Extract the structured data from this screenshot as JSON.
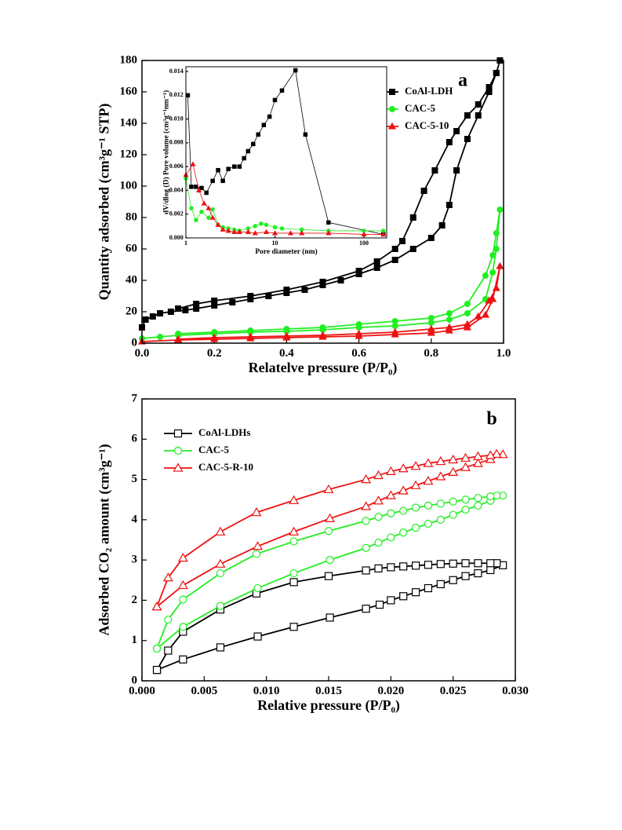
{
  "chart_data": [
    {
      "type": "line",
      "panel_label": "a",
      "xlabel": "Relatelve pressure (P/P₀)",
      "ylabel": "Quantity adsorbed (cm³g⁻¹ STP)",
      "xlim": [
        0,
        1
      ],
      "ylim": [
        0,
        180
      ],
      "xticks": [
        {
          "value": 0,
          "label": "0.0"
        },
        0.2,
        0.4,
        0.6,
        0.8,
        {
          "value": 1,
          "label": "1.0"
        }
      ],
      "yticks": [
        0,
        20,
        40,
        60,
        80,
        100,
        120,
        140,
        160,
        180
      ],
      "legend": "upper right",
      "filled": true,
      "series": [
        {
          "name": "CoAl-LDH",
          "color": "#000000",
          "marker": "square",
          "x": [
            0.0,
            0.01,
            0.03,
            0.05,
            0.08,
            0.12,
            0.15,
            0.2,
            0.25,
            0.3,
            0.35,
            0.4,
            0.45,
            0.5,
            0.55,
            0.6,
            0.65,
            0.7,
            0.75,
            0.8,
            0.83,
            0.85,
            0.87,
            0.9,
            0.93,
            0.96,
            0.98,
            0.99,
            0.98,
            0.96,
            0.93,
            0.9,
            0.87,
            0.85,
            0.81,
            0.78,
            0.75,
            0.72,
            0.7,
            0.65,
            0.6,
            0.5,
            0.4,
            0.3,
            0.2,
            0.15,
            0.1
          ],
          "values": [
            10,
            15,
            17,
            19,
            20,
            21,
            22,
            24,
            26,
            28,
            30,
            32,
            34,
            37,
            40,
            44,
            48,
            53,
            60,
            67,
            75,
            88,
            110,
            130,
            145,
            160,
            172,
            180,
            172,
            163,
            152,
            145,
            135,
            128,
            110,
            97,
            80,
            65,
            60,
            52,
            46,
            39,
            34,
            30,
            27,
            25,
            22
          ]
        },
        {
          "name": "CAC-5",
          "color": "#22ee22",
          "marker": "circle",
          "x": [
            0.0,
            0.05,
            0.1,
            0.2,
            0.3,
            0.4,
            0.5,
            0.6,
            0.7,
            0.8,
            0.85,
            0.9,
            0.95,
            0.97,
            0.98,
            0.99,
            0.98,
            0.97,
            0.95,
            0.9,
            0.85,
            0.8,
            0.7,
            0.6,
            0.5,
            0.4,
            0.3,
            0.2,
            0.1
          ],
          "values": [
            3,
            4,
            5,
            6,
            7,
            7.5,
            8.5,
            10,
            11,
            13,
            15,
            19,
            28,
            45,
            60,
            85,
            70,
            56,
            43,
            25,
            19,
            16,
            14,
            12,
            10,
            9,
            8,
            7,
            6
          ]
        },
        {
          "name": "CAC-5-10",
          "color": "#ee1111",
          "marker": "triangle",
          "x": [
            0.0,
            0.1,
            0.2,
            0.3,
            0.4,
            0.5,
            0.6,
            0.7,
            0.8,
            0.85,
            0.9,
            0.95,
            0.97,
            0.99,
            0.98,
            0.96,
            0.93,
            0.9,
            0.85,
            0.8,
            0.7,
            0.6,
            0.5,
            0.4,
            0.3,
            0.2,
            0.1
          ],
          "values": [
            1,
            2,
            2.5,
            3,
            3.5,
            4,
            4.5,
            5.5,
            6.5,
            8,
            10,
            18,
            28,
            49,
            35,
            27,
            17,
            12,
            10,
            9,
            7,
            6,
            5,
            4.5,
            4,
            3.5,
            2.5
          ]
        }
      ]
    },
    {
      "type": "line",
      "xlabel": "Pore diameter (nm)",
      "ylabel": "dV/dlog (D) Pore volume (cm³g⁻¹nm⁻¹)",
      "xlog": true,
      "xlim": [
        1,
        180
      ],
      "ylim": [
        0,
        0.0144
      ],
      "xticks": [
        1,
        10,
        100
      ],
      "yticks": [
        {
          "value": 0,
          "label": "0.000"
        },
        0.002,
        0.004,
        0.006,
        0.008,
        {
          "value": 0.01,
          "label": "0.010"
        },
        0.012,
        0.014
      ],
      "filled": true,
      "series": [
        {
          "color": "#000000",
          "marker": "square",
          "x": [
            1.05,
            1.15,
            1.3,
            1.5,
            1.7,
            2.0,
            2.3,
            2.6,
            3,
            3.5,
            4,
            4.5,
            5,
            5.7,
            6.5,
            7.5,
            8.7,
            10,
            12,
            17,
            22,
            40,
            165
          ],
          "values": [
            0.012,
            0.0043,
            0.0043,
            0.0042,
            0.0038,
            0.0048,
            0.0057,
            0.0048,
            0.0058,
            0.006,
            0.006,
            0.0067,
            0.0073,
            0.0079,
            0.0087,
            0.0095,
            0.0102,
            0.0116,
            0.0124,
            0.0141,
            0.0087,
            0.0013,
            0.0003
          ]
        },
        {
          "color": "#22ee22",
          "marker": "circle",
          "x": [
            1,
            1.15,
            1.3,
            1.5,
            1.8,
            2,
            2.3,
            2.6,
            3,
            3.5,
            4,
            5,
            6,
            7,
            8,
            10,
            12,
            20,
            40,
            100,
            165
          ],
          "values": [
            0.005,
            0.0025,
            0.0015,
            0.0022,
            0.0017,
            0.0024,
            0.0011,
            0.0009,
            0.0008,
            0.0007,
            0.0006,
            0.0008,
            0.001,
            0.0012,
            0.0011,
            0.0009,
            0.0008,
            0.0007,
            0.0006,
            0.0006,
            0.0006
          ]
        },
        {
          "color": "#ee1111",
          "marker": "triangle",
          "x": [
            1,
            1.2,
            1.4,
            1.6,
            1.8,
            2,
            2.3,
            2.6,
            3,
            3.5,
            4,
            5,
            6,
            8,
            10,
            15,
            20,
            40,
            100,
            165
          ],
          "values": [
            0.0053,
            0.0062,
            0.004,
            0.0029,
            0.0025,
            0.0017,
            0.0011,
            0.0007,
            0.0006,
            0.0005,
            0.0005,
            0.0005,
            0.0004,
            0.0005,
            0.0004,
            0.0004,
            0.0004,
            0.0004,
            0.0003,
            0.0003
          ]
        }
      ]
    },
    {
      "type": "line",
      "panel_label": "b",
      "xlabel": "Relative pressure (P/P₀)",
      "ylabel": "Adsorbed CO₂ amount (cm³g⁻¹)",
      "xlim": [
        0,
        0.03
      ],
      "ylim": [
        0,
        7
      ],
      "xticks": [
        {
          "value": 0,
          "label": "0.000"
        },
        0.005,
        {
          "value": 0.01,
          "label": "0.010"
        },
        0.015,
        {
          "value": 0.02,
          "label": "0.020"
        },
        0.025,
        {
          "value": 0.03,
          "label": "0.030"
        }
      ],
      "yticks": [
        0,
        1,
        2,
        3,
        4,
        5,
        6,
        7
      ],
      "legend": "upper left",
      "filled": false,
      "series": [
        {
          "name": "CoAl-LDHs",
          "color": "#000000",
          "marker": "square",
          "x": [
            0.0012,
            0.0033,
            0.0063,
            0.0093,
            0.0122,
            0.0151,
            0.018,
            0.0191,
            0.02,
            0.021,
            0.022,
            0.023,
            0.024,
            0.025,
            0.026,
            0.027,
            0.028,
            0.029,
            0.0285,
            0.028,
            0.027,
            0.026,
            0.025,
            0.024,
            0.023,
            0.022,
            0.021,
            0.02,
            0.019,
            0.018,
            0.015,
            0.0122,
            0.0092,
            0.0063,
            0.0033,
            0.0021,
            0.0012
          ],
          "values": [
            0.27,
            0.53,
            0.83,
            1.1,
            1.34,
            1.57,
            1.79,
            1.89,
            2.0,
            2.1,
            2.2,
            2.3,
            2.4,
            2.5,
            2.6,
            2.67,
            2.75,
            2.87,
            2.92,
            2.92,
            2.92,
            2.92,
            2.91,
            2.9,
            2.88,
            2.86,
            2.84,
            2.82,
            2.79,
            2.74,
            2.6,
            2.45,
            2.17,
            1.77,
            1.22,
            0.75,
            0.27
          ]
        },
        {
          "name": "CAC-5",
          "color": "#22ee22",
          "marker": "circle",
          "x": [
            0.0012,
            0.0033,
            0.0063,
            0.0093,
            0.0122,
            0.0151,
            0.018,
            0.019,
            0.02,
            0.021,
            0.022,
            0.023,
            0.024,
            0.025,
            0.026,
            0.027,
            0.028,
            0.029,
            0.0285,
            0.028,
            0.027,
            0.026,
            0.025,
            0.024,
            0.023,
            0.022,
            0.021,
            0.02,
            0.019,
            0.018,
            0.015,
            0.0122,
            0.0092,
            0.0063,
            0.0033,
            0.0021,
            0.0012
          ],
          "values": [
            0.8,
            1.34,
            1.86,
            2.3,
            2.67,
            3.0,
            3.3,
            3.43,
            3.56,
            3.68,
            3.8,
            3.9,
            4.0,
            4.12,
            4.25,
            4.35,
            4.47,
            4.6,
            4.6,
            4.58,
            4.54,
            4.5,
            4.45,
            4.4,
            4.35,
            4.3,
            4.22,
            4.16,
            4.07,
            3.97,
            3.72,
            3.46,
            3.15,
            2.67,
            2.02,
            1.52,
            0.8
          ]
        },
        {
          "name": "CAC-5-R-10",
          "color": "#ee1111",
          "marker": "triangle",
          "x": [
            0.0012,
            0.0033,
            0.0063,
            0.0093,
            0.0122,
            0.0151,
            0.018,
            0.019,
            0.02,
            0.021,
            0.022,
            0.023,
            0.024,
            0.025,
            0.026,
            0.027,
            0.028,
            0.029,
            0.0285,
            0.028,
            0.027,
            0.026,
            0.025,
            0.024,
            0.023,
            0.022,
            0.021,
            0.02,
            0.019,
            0.018,
            0.015,
            0.0122,
            0.0092,
            0.0063,
            0.0033,
            0.0021,
            0.0012
          ],
          "values": [
            1.84,
            2.37,
            2.9,
            3.34,
            3.7,
            4.03,
            4.33,
            4.47,
            4.6,
            4.72,
            4.85,
            4.96,
            5.07,
            5.18,
            5.3,
            5.4,
            5.5,
            5.62,
            5.63,
            5.6,
            5.57,
            5.53,
            5.49,
            5.45,
            5.4,
            5.33,
            5.27,
            5.2,
            5.1,
            5.0,
            4.75,
            4.48,
            4.18,
            3.7,
            3.05,
            2.56,
            1.84
          ]
        }
      ]
    }
  ]
}
